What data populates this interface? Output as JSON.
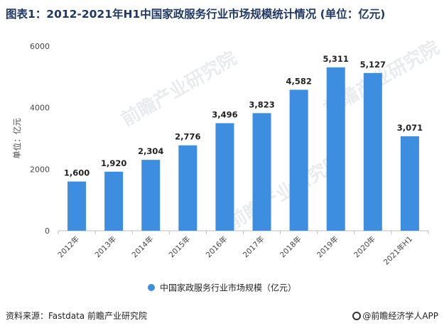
{
  "title": "图表1：2012-2021年H1中国家政服务行业市场规模统计情况 (单位：亿元)",
  "footer": {
    "source": "资料来源：Fastdata 前瞻产业研究院",
    "brand": "@前瞻经济学人APP"
  },
  "watermark_text": "前瞻产业研究院",
  "colors": {
    "bar": "#3d8ee0",
    "title": "#1f3864",
    "axis": "#bfbfbf"
  },
  "chart_data": {
    "type": "bar",
    "title": "图表1：2012-2021年H1中国家政服务行业市场规模统计情况 (单位：亿元)",
    "categories": [
      "2012年",
      "2013年",
      "2014年",
      "2015年",
      "2016年",
      "2017年",
      "2018年",
      "2019年",
      "2020年",
      "2021年H1"
    ],
    "series": [
      {
        "name": "中国家政服务行业市场规模（亿元）",
        "values": [
          1600,
          1920,
          2304,
          2776,
          3496,
          3823,
          4582,
          5311,
          5127,
          3071
        ]
      }
    ],
    "value_labels": [
      "1,600",
      "1,920",
      "2,304",
      "2,776",
      "3,496",
      "3,823",
      "4,582",
      "5,311",
      "5,127",
      "3,071"
    ],
    "ylabel": "单位：亿元",
    "ylim": [
      0,
      6000
    ],
    "yticks": [
      0,
      2000,
      4000,
      6000
    ],
    "ytick_labels": [
      "0",
      "2000",
      "4000",
      "6000"
    ],
    "grid": false,
    "legend_position": "bottom"
  }
}
